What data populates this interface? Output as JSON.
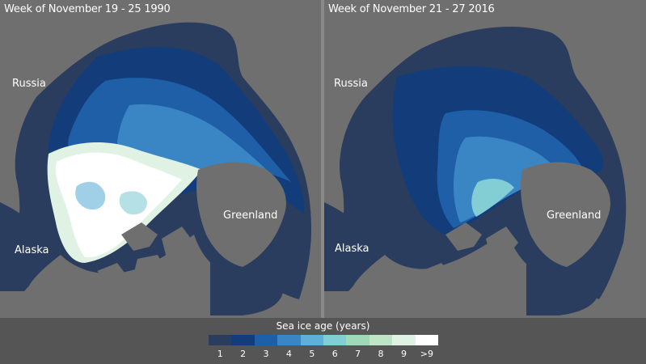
{
  "panels": {
    "left": {
      "title": "Week of November 19 - 25 1990",
      "labels": {
        "russia": "Russia",
        "greenland": "Greenland",
        "alaska": "Alaska"
      }
    },
    "right": {
      "title": "Week of November 21 - 27 2016",
      "labels": {
        "russia": "Russia",
        "greenland": "Greenland",
        "alaska": "Alaska"
      }
    }
  },
  "legend": {
    "title": "Sea ice age (years)",
    "items": [
      {
        "label": "1",
        "color": "#2a3d5e"
      },
      {
        "label": "2",
        "color": "#123d7a"
      },
      {
        "label": "3",
        "color": "#1e5fa8"
      },
      {
        "label": "4",
        "color": "#3a86c4"
      },
      {
        "label": "5",
        "color": "#5fb0d9"
      },
      {
        "label": "6",
        "color": "#83cdd5"
      },
      {
        "label": "7",
        "color": "#9fd9b8"
      },
      {
        "label": "8",
        "color": "#bde5c6"
      },
      {
        "label": "9",
        "color": "#dff2e3"
      },
      {
        "label": ">9",
        "color": "#ffffff"
      }
    ]
  },
  "colors": {
    "land": "#6f6f6f",
    "ocean": "#2a3d5e"
  }
}
